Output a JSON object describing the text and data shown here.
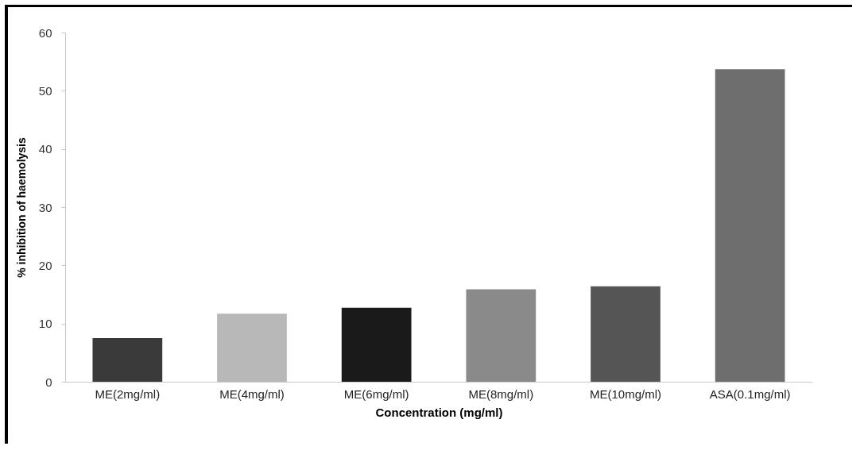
{
  "chart_data": {
    "type": "bar",
    "xlabel": "Concentration (mg/ml)",
    "ylabel": "% inhibition of haemolysis",
    "categories": [
      "ME(2mg/ml)",
      "ME(4mg/ml)",
      "ME(6mg/ml)",
      "ME(8mg/ml)",
      "ME(10mg/ml)",
      "ASA(0.1mg/ml)"
    ],
    "values": [
      7.5,
      11.7,
      12.7,
      15.9,
      16.4,
      53.7
    ],
    "colors": [
      "#3a3a3a",
      "#b8b8b8",
      "#1a1a1a",
      "#8a8a8a",
      "#555555",
      "#6e6e6e"
    ],
    "ylim": [
      0,
      60
    ],
    "yticks": [
      0,
      10,
      20,
      30,
      40,
      50,
      60
    ],
    "grid": false
  }
}
